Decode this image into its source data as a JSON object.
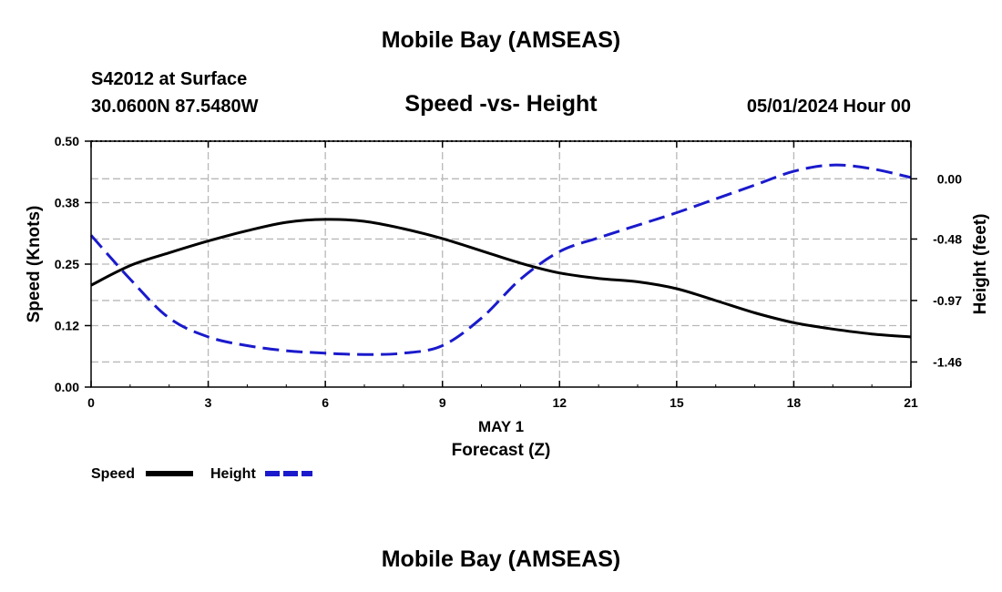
{
  "header": {
    "title": "Mobile Bay (AMSEAS)",
    "station": "S42012 at Surface",
    "coordinates": "30.0600N  87.5480W",
    "subtitle": "Speed -vs- Height",
    "datetime": "05/01/2024 Hour 00"
  },
  "footer": {
    "title": "Mobile Bay (AMSEAS)"
  },
  "chart_data": {
    "type": "line",
    "title": "Speed -vs- Height",
    "xlabel": "Forecast (Z)",
    "xsublabel": "MAY 1",
    "ylabel": "Speed (Knots)",
    "y2label": "Height (feet)",
    "xlim": [
      0,
      21
    ],
    "ylim": [
      0,
      0.5
    ],
    "y2lim": [
      -1.66,
      0.3
    ],
    "x_ticks": [
      0,
      3,
      6,
      9,
      12,
      15,
      18,
      21
    ],
    "x_tick_labels": [
      "0",
      "3",
      "6",
      "9",
      "12",
      "15",
      "18",
      "21"
    ],
    "y_ticks": [
      0,
      0.125,
      0.25,
      0.375,
      0.5
    ],
    "y_tick_labels": [
      "0.00",
      "0.12",
      "0.25",
      "0.38",
      "0.50"
    ],
    "y2_ticks": [
      0.0,
      -0.48,
      -0.97,
      -1.46
    ],
    "y2_tick_labels": [
      "0.00",
      "-0.48",
      "-0.97",
      "-1.46"
    ],
    "grid": true,
    "legend_position": "bottom-left",
    "series": [
      {
        "name": "Speed",
        "axis": "left",
        "color": "#000000",
        "style": "solid",
        "x": [
          0,
          1,
          2,
          3,
          4,
          5,
          6,
          7,
          8,
          9,
          10,
          11,
          12,
          13,
          14,
          15,
          16,
          17,
          18,
          19,
          20,
          21
        ],
        "values": [
          0.207,
          0.247,
          0.273,
          0.297,
          0.318,
          0.335,
          0.341,
          0.337,
          0.322,
          0.302,
          0.277,
          0.252,
          0.232,
          0.221,
          0.214,
          0.2,
          0.176,
          0.151,
          0.131,
          0.118,
          0.108,
          0.102
        ]
      },
      {
        "name": "Height",
        "axis": "right",
        "color": "#1a1acc",
        "style": "dashed",
        "x": [
          0,
          1,
          2,
          3,
          4,
          5,
          6,
          7,
          8,
          9,
          10,
          11,
          12,
          13,
          14,
          15,
          16,
          17,
          18,
          19,
          20,
          21
        ],
        "values": [
          -0.45,
          -0.8,
          -1.11,
          -1.26,
          -1.33,
          -1.37,
          -1.39,
          -1.4,
          -1.39,
          -1.33,
          -1.11,
          -0.8,
          -0.58,
          -0.47,
          -0.37,
          -0.27,
          -0.16,
          -0.05,
          0.06,
          0.11,
          0.08,
          0.01
        ]
      }
    ]
  }
}
